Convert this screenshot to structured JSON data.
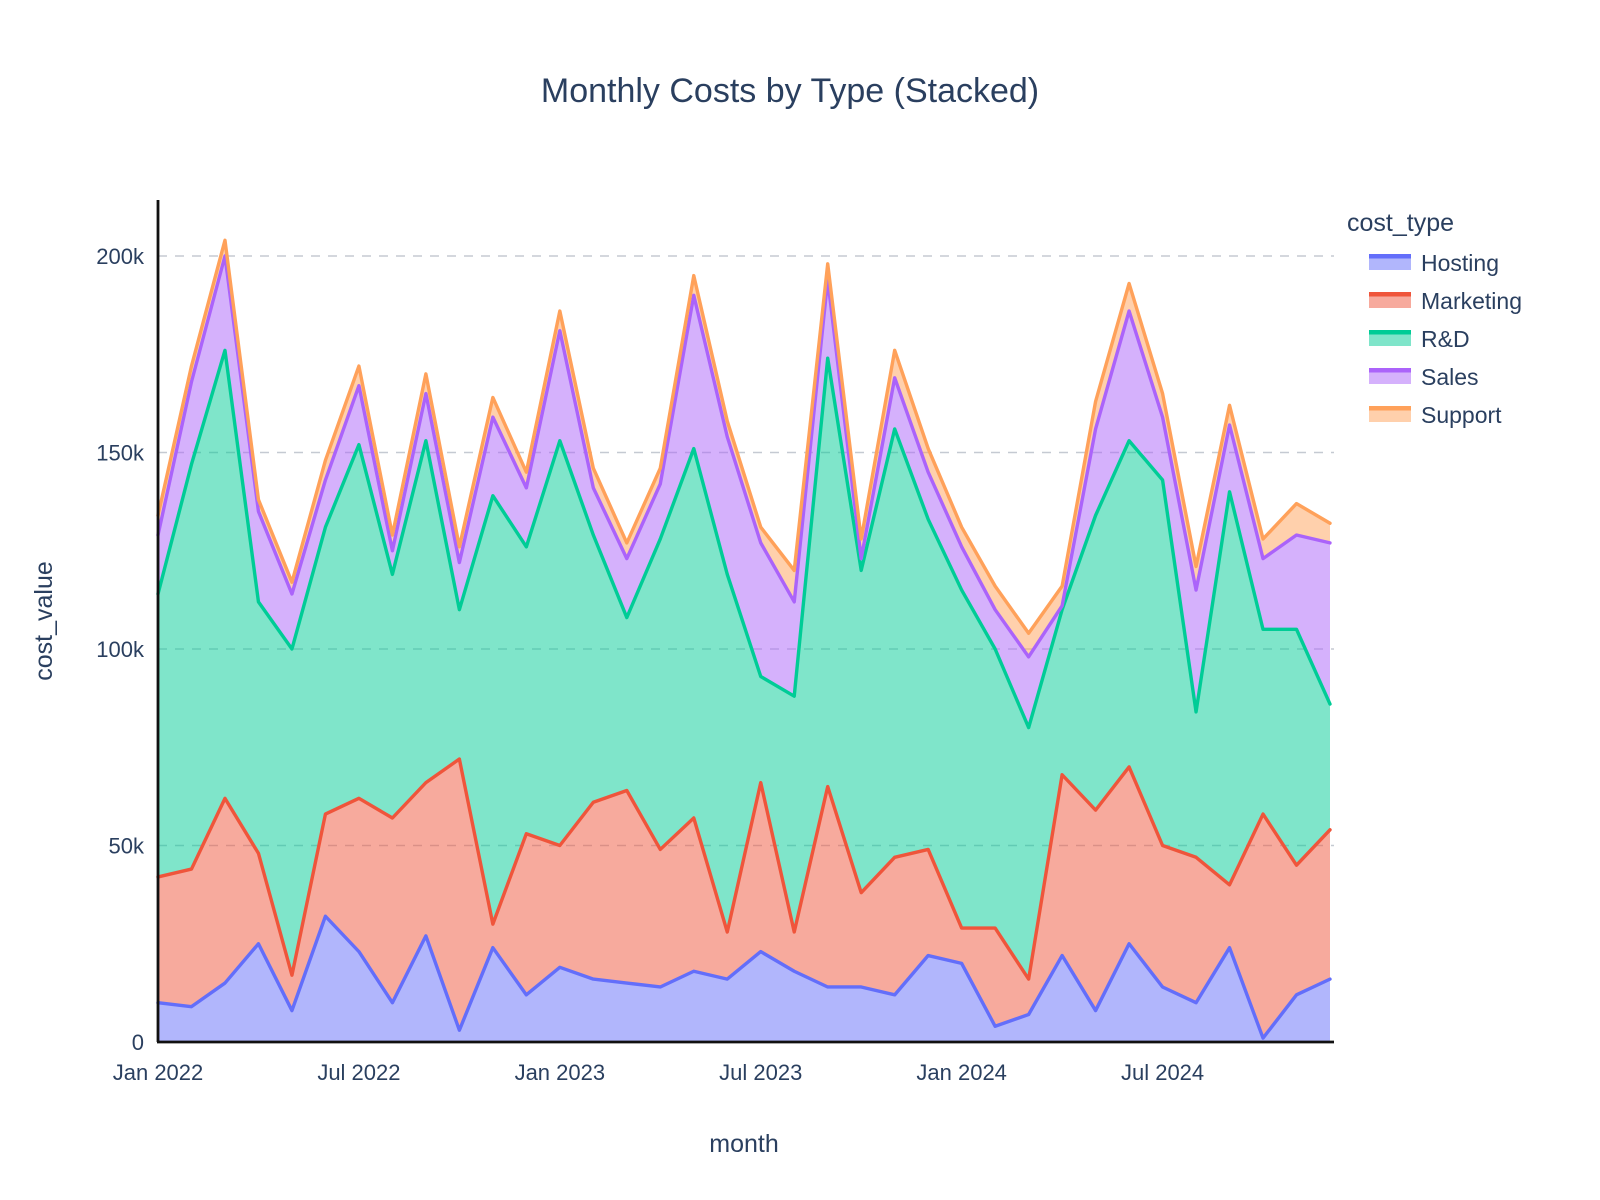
{
  "title": "Monthly Costs by Type (Stacked)",
  "x_axis": {
    "title": "month",
    "ticks": [
      {
        "i": 0,
        "label": "Jan 2022"
      },
      {
        "i": 6,
        "label": "Jul 2022"
      },
      {
        "i": 12,
        "label": "Jan 2023"
      },
      {
        "i": 18,
        "label": "Jul 2023"
      },
      {
        "i": 24,
        "label": "Jan 2024"
      },
      {
        "i": 30,
        "label": "Jul 2024"
      }
    ]
  },
  "y_axis": {
    "title": "cost_value",
    "tick_values": [
      0,
      50000,
      100000,
      150000,
      200000
    ],
    "tick_labels": [
      "0",
      "50k",
      "100k",
      "150k",
      "200k"
    ]
  },
  "legend": {
    "title": "cost_type"
  },
  "colors": {
    "text": "#2a3f5f",
    "axis_line": "#111111",
    "gridline": "#c5cad2",
    "background": "#ffffff"
  },
  "chart_data": {
    "type": "area",
    "stacked": true,
    "title": "Monthly Costs by Type (Stacked)",
    "xlabel": "month",
    "ylabel": "cost_value",
    "ylim": [
      0,
      214000
    ],
    "grid": "horizontal dashed at 50k steps",
    "legend_position": "right",
    "x": [
      "Jan 2022",
      "Feb 2022",
      "Mar 2022",
      "Apr 2022",
      "May 2022",
      "Jun 2022",
      "Jul 2022",
      "Aug 2022",
      "Sep 2022",
      "Oct 2022",
      "Nov 2022",
      "Dec 2022",
      "Jan 2023",
      "Feb 2023",
      "Mar 2023",
      "Apr 2023",
      "May 2023",
      "Jun 2023",
      "Jul 2023",
      "Aug 2023",
      "Sep 2023",
      "Oct 2023",
      "Nov 2023",
      "Dec 2023",
      "Jan 2024",
      "Feb 2024",
      "Mar 2024",
      "Apr 2024",
      "May 2024",
      "Jun 2024",
      "Jul 2024",
      "Aug 2024",
      "Sep 2024",
      "Oct 2024",
      "Nov 2024",
      "Dec 2024"
    ],
    "series": [
      {
        "name": "Hosting",
        "color": "#636EFA",
        "values": [
          10000,
          9000,
          15000,
          25000,
          8000,
          32000,
          23000,
          10000,
          27000,
          3000,
          24000,
          12000,
          19000,
          16000,
          15000,
          14000,
          18000,
          16000,
          23000,
          18000,
          14000,
          14000,
          12000,
          22000,
          20000,
          4000,
          7000,
          22000,
          8000,
          25000,
          14000,
          10000,
          24000,
          1000,
          12000,
          16000
        ]
      },
      {
        "name": "Marketing",
        "color": "#EF553B",
        "values": [
          32000,
          35000,
          47000,
          23000,
          9000,
          26000,
          39000,
          47000,
          39000,
          69000,
          6000,
          41000,
          31000,
          45000,
          49000,
          35000,
          39000,
          12000,
          43000,
          10000,
          51000,
          24000,
          35000,
          27000,
          9000,
          25000,
          9000,
          46000,
          51000,
          45000,
          36000,
          37000,
          16000,
          57000,
          33000,
          38000
        ]
      },
      {
        "name": "R&D",
        "color": "#00CC96",
        "values": [
          72000,
          103000,
          114000,
          64000,
          83000,
          73000,
          90000,
          62000,
          87000,
          38000,
          109000,
          73000,
          103000,
          68000,
          44000,
          79000,
          94000,
          91000,
          27000,
          60000,
          109000,
          82000,
          109000,
          84000,
          86000,
          71000,
          64000,
          42000,
          75000,
          83000,
          93000,
          37000,
          100000,
          47000,
          60000,
          32000
        ]
      },
      {
        "name": "Sales",
        "color": "#AB63FA",
        "values": [
          15000,
          21000,
          24000,
          23000,
          14000,
          12000,
          15000,
          6000,
          12000,
          12000,
          20000,
          15000,
          28000,
          12000,
          15000,
          14000,
          39000,
          35000,
          34000,
          24000,
          20000,
          3000,
          13000,
          12000,
          11000,
          10000,
          18000,
          1000,
          22000,
          33000,
          16000,
          31000,
          17000,
          18000,
          24000,
          41000
        ]
      },
      {
        "name": "Support",
        "color": "#FFA15A",
        "values": [
          5000,
          4000,
          4000,
          3000,
          3000,
          5000,
          5000,
          4000,
          5000,
          4000,
          5000,
          4000,
          5000,
          5000,
          4000,
          4000,
          5000,
          4000,
          4000,
          8000,
          4000,
          5000,
          7000,
          6000,
          5000,
          6000,
          6000,
          5000,
          7000,
          7000,
          6000,
          6000,
          5000,
          5000,
          8000,
          5000
        ]
      }
    ]
  }
}
